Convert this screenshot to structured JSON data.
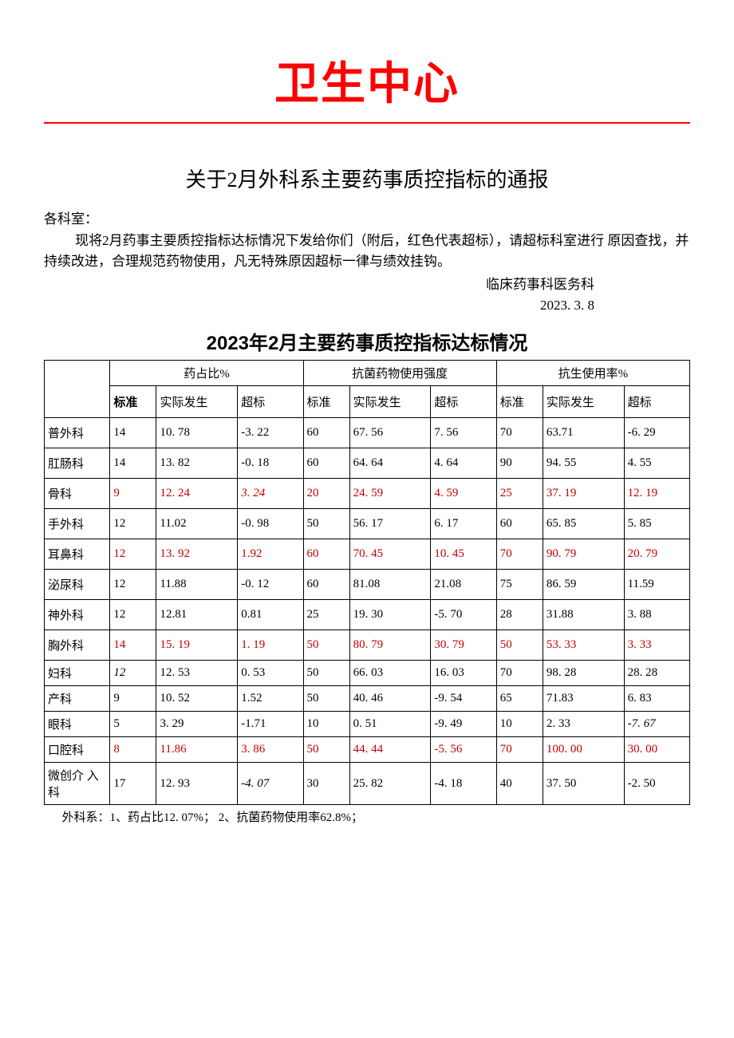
{
  "header": {
    "org_title": "卫生中心"
  },
  "doc": {
    "title": "关于2月外科系主要药事质控指标的通报",
    "addressee": "各科室：",
    "body": "现将2月药事主要质控指标达标情况下发给你们（附后，红色代表超标），请超标科室进行 原因查找，并持续改进，合理规范药物使用，凡无特殊原因超标一律与绩效挂钩。",
    "sign_dept": "临床药事科医务科",
    "sign_date": "2023. 3. 8"
  },
  "table": {
    "title": "2023年2月主要药事质控指标达标情况",
    "group_headers": [
      "药占比%",
      "抗菌药物使用强度",
      "抗生使用率%"
    ],
    "sub_headers": [
      "标准",
      "实际发生",
      "超标",
      "标准",
      "实际发生",
      "超标",
      "标准",
      "实际发生",
      "超标"
    ],
    "rows": [
      {
        "dept": "普外科",
        "c": [
          {
            "v": "14"
          },
          {
            "v": "10. 78"
          },
          {
            "v": "-3. 22"
          },
          {
            "v": "60"
          },
          {
            "v": "67. 56"
          },
          {
            "v": "7. 56"
          },
          {
            "v": "70"
          },
          {
            "v": "63.71"
          },
          {
            "v": "-6. 29"
          }
        ]
      },
      {
        "dept": "肛肠科",
        "c": [
          {
            "v": "14"
          },
          {
            "v": "13. 82"
          },
          {
            "v": "-0. 18"
          },
          {
            "v": "60"
          },
          {
            "v": "64. 64"
          },
          {
            "v": "4. 64"
          },
          {
            "v": "90"
          },
          {
            "v": "94. 55"
          },
          {
            "v": "4. 55"
          }
        ]
      },
      {
        "dept": "骨科",
        "c": [
          {
            "v": "9",
            "red": true
          },
          {
            "v": "12. 24",
            "red": true
          },
          {
            "v": "3. 24",
            "red": true,
            "italic": true
          },
          {
            "v": "20",
            "red": true
          },
          {
            "v": "24. 59",
            "red": true
          },
          {
            "v": "4. 59",
            "red": true
          },
          {
            "v": "25",
            "red": true
          },
          {
            "v": "37. 19",
            "red": true
          },
          {
            "v": "12. 19",
            "red": true
          }
        ]
      },
      {
        "dept": "手外科",
        "c": [
          {
            "v": "12"
          },
          {
            "v": "11.02"
          },
          {
            "v": "-0. 98"
          },
          {
            "v": "50"
          },
          {
            "v": "56. 17"
          },
          {
            "v": "6. 17"
          },
          {
            "v": "60"
          },
          {
            "v": "65. 85"
          },
          {
            "v": "5. 85"
          }
        ]
      },
      {
        "dept": "耳鼻科",
        "c": [
          {
            "v": "12",
            "red": true
          },
          {
            "v": "13. 92",
            "red": true
          },
          {
            "v": "1.92",
            "red": true
          },
          {
            "v": "60",
            "red": true
          },
          {
            "v": "70. 45",
            "red": true
          },
          {
            "v": "10. 45",
            "red": true
          },
          {
            "v": "70",
            "red": true
          },
          {
            "v": "90. 79",
            "red": true
          },
          {
            "v": "20. 79",
            "red": true
          }
        ]
      },
      {
        "dept": "泌尿科",
        "c": [
          {
            "v": "12"
          },
          {
            "v": "11.88"
          },
          {
            "v": "-0. 12"
          },
          {
            "v": "60"
          },
          {
            "v": "81.08"
          },
          {
            "v": "21.08"
          },
          {
            "v": "75"
          },
          {
            "v": "86. 59"
          },
          {
            "v": "11.59"
          }
        ]
      },
      {
        "dept": "神外科",
        "c": [
          {
            "v": "12"
          },
          {
            "v": "12.81"
          },
          {
            "v": "0.81"
          },
          {
            "v": "25"
          },
          {
            "v": "19. 30"
          },
          {
            "v": "-5. 70"
          },
          {
            "v": "28"
          },
          {
            "v": "31.88"
          },
          {
            "v": "3. 88"
          }
        ]
      },
      {
        "dept": "胸外科",
        "c": [
          {
            "v": "14",
            "red": true
          },
          {
            "v": "15. 19",
            "red": true
          },
          {
            "v": "1. 19",
            "red": true
          },
          {
            "v": "50",
            "red": true
          },
          {
            "v": "80. 79",
            "red": true
          },
          {
            "v": "30. 79",
            "red": true
          },
          {
            "v": "50",
            "red": true
          },
          {
            "v": "53. 33",
            "red": true
          },
          {
            "v": "3. 33",
            "red": true
          }
        ]
      },
      {
        "dept": "妇科",
        "c": [
          {
            "v": "12",
            "italic": true
          },
          {
            "v": "12. 53"
          },
          {
            "v": "0. 53"
          },
          {
            "v": "50"
          },
          {
            "v": "66. 03"
          },
          {
            "v": "16. 03"
          },
          {
            "v": "70"
          },
          {
            "v": "98. 28"
          },
          {
            "v": "28. 28"
          }
        ]
      },
      {
        "dept": "产科",
        "c": [
          {
            "v": "9"
          },
          {
            "v": "10. 52"
          },
          {
            "v": "1.52"
          },
          {
            "v": "50"
          },
          {
            "v": "40. 46"
          },
          {
            "v": "-9. 54"
          },
          {
            "v": "65"
          },
          {
            "v": "71.83"
          },
          {
            "v": "6. 83"
          }
        ]
      },
      {
        "dept": "眼科",
        "c": [
          {
            "v": "5"
          },
          {
            "v": "3. 29"
          },
          {
            "v": "-1.71"
          },
          {
            "v": "10"
          },
          {
            "v": "0. 51"
          },
          {
            "v": "-9. 49"
          },
          {
            "v": "10"
          },
          {
            "v": "2. 33"
          },
          {
            "v": "-7. 67",
            "italic": true
          }
        ]
      },
      {
        "dept": "口腔科",
        "c": [
          {
            "v": "8",
            "red": true
          },
          {
            "v": "11.86",
            "red": true
          },
          {
            "v": "3. 86",
            "red": true
          },
          {
            "v": "50",
            "red": true
          },
          {
            "v": "44. 44",
            "red": true
          },
          {
            "v": "-5. 56",
            "red": true
          },
          {
            "v": "70",
            "red": true
          },
          {
            "v": "100. 00",
            "red": true
          },
          {
            "v": "30. 00",
            "red": true
          }
        ]
      },
      {
        "dept": "微创介 入科",
        "c": [
          {
            "v": "17"
          },
          {
            "v": "12. 93"
          },
          {
            "v": "-4. 07",
            "italic": true
          },
          {
            "v": "30"
          },
          {
            "v": "25. 82"
          },
          {
            "v": "-4. 18"
          },
          {
            "v": "40"
          },
          {
            "v": "37. 50"
          },
          {
            "v": "-2. 50"
          }
        ]
      }
    ],
    "footnote": "外科系：1、药占比12. 07%； 2、抗菌药物使用率62.8%；"
  },
  "colors": {
    "header_red": "#ff0000",
    "text_red": "#c00000",
    "black": "#000000",
    "background": "#ffffff"
  }
}
